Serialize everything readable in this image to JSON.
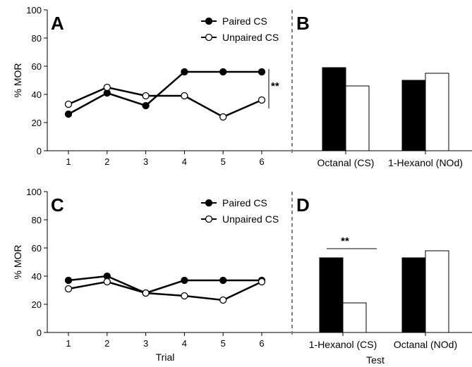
{
  "chart_data": [
    {
      "panel": "A",
      "type": "line",
      "x": [
        1,
        2,
        3,
        4,
        5,
        6
      ],
      "ylabel": "% MOR",
      "xlabel": "",
      "ylim": [
        0,
        100
      ],
      "yticks": [
        0,
        20,
        40,
        60,
        80,
        100
      ],
      "legend": "top-right",
      "series": [
        {
          "name": "Paired CS",
          "marker": "filled",
          "values": [
            26,
            41,
            32,
            56,
            56,
            56
          ]
        },
        {
          "name": "Unpaired CS",
          "marker": "open",
          "values": [
            33,
            45,
            39,
            39,
            24,
            36
          ]
        }
      ],
      "significance": "**"
    },
    {
      "panel": "B",
      "type": "bar",
      "categories": [
        "Octanal (CS)",
        "1-Hexanol (NOd)"
      ],
      "xlabel": "",
      "ylim": [
        0,
        100
      ],
      "series": [
        {
          "name": "Paired CS",
          "color": "#000000",
          "values": [
            59,
            50
          ]
        },
        {
          "name": "Unpaired CS",
          "color": "#ffffff",
          "values": [
            46,
            55
          ]
        }
      ]
    },
    {
      "panel": "C",
      "type": "line",
      "x": [
        1,
        2,
        3,
        4,
        5,
        6
      ],
      "ylabel": "% MOR",
      "xlabel": "Trial",
      "ylim": [
        0,
        100
      ],
      "yticks": [
        0,
        20,
        40,
        60,
        80,
        100
      ],
      "legend": "top-right",
      "series": [
        {
          "name": "Paired CS",
          "marker": "filled",
          "values": [
            37,
            40,
            28,
            37,
            37,
            37
          ]
        },
        {
          "name": "Unpaired CS",
          "marker": "open",
          "values": [
            31,
            36,
            28,
            26,
            23,
            36
          ]
        }
      ]
    },
    {
      "panel": "D",
      "type": "bar",
      "categories": [
        "1-Hexanol (CS)",
        "Octanal (NOd)"
      ],
      "xlabel": "Test",
      "ylim": [
        0,
        100
      ],
      "series": [
        {
          "name": "Paired CS",
          "color": "#000000",
          "values": [
            53,
            53
          ]
        },
        {
          "name": "Unpaired CS",
          "color": "#ffffff",
          "values": [
            21,
            58
          ]
        }
      ],
      "significance": "**"
    }
  ]
}
